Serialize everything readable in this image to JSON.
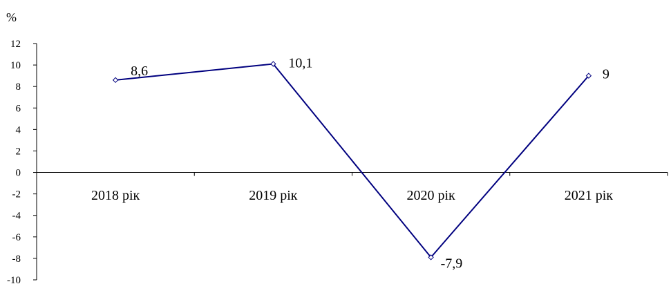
{
  "chart_data": {
    "type": "line",
    "unit_label": "%",
    "categories": [
      "2018 рік",
      "2019 рік",
      "2020 рік",
      "2021 рік"
    ],
    "series": [
      {
        "values": [
          8.6,
          10.1,
          -7.9,
          9
        ],
        "labels": [
          "8,6",
          "10,1",
          "-7,9",
          "9"
        ]
      }
    ],
    "ylim": [
      -10,
      12
    ],
    "yticks": [
      12,
      10,
      8,
      6,
      4,
      2,
      0,
      -2,
      -4,
      -6,
      -8,
      -10
    ],
    "grid": false,
    "legend": "none",
    "colors": {
      "line": "#00007f",
      "marker_stroke": "#00007f",
      "axis": "#000000"
    }
  }
}
